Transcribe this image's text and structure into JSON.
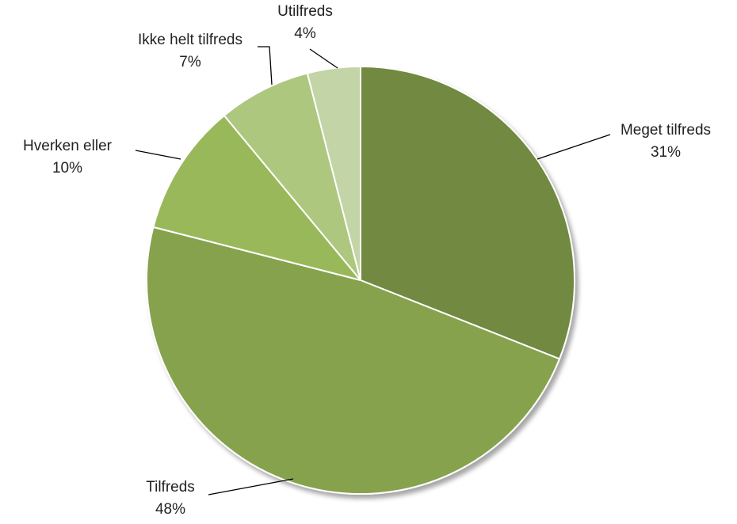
{
  "chart_data": {
    "type": "pie",
    "title": "",
    "start_angle_deg": 0,
    "direction": "clockwise",
    "slices": [
      {
        "label": "Meget tilfreds",
        "value": 31,
        "value_label": "31%",
        "color": "#71893f"
      },
      {
        "label": "Tilfreds",
        "value": 48,
        "value_label": "48%",
        "color": "#86a24d"
      },
      {
        "label": "Hverken eller",
        "value": 10,
        "value_label": "10%",
        "color": "#99b85a"
      },
      {
        "label": "Ikke helt tilfreds",
        "value": 7,
        "value_label": "7%",
        "color": "#adc77f"
      },
      {
        "label": "Utilfreds",
        "value": 4,
        "value_label": "4%",
        "color": "#c3d4a6"
      }
    ],
    "legend": "none",
    "labels": "outside-with-leader-lines"
  }
}
